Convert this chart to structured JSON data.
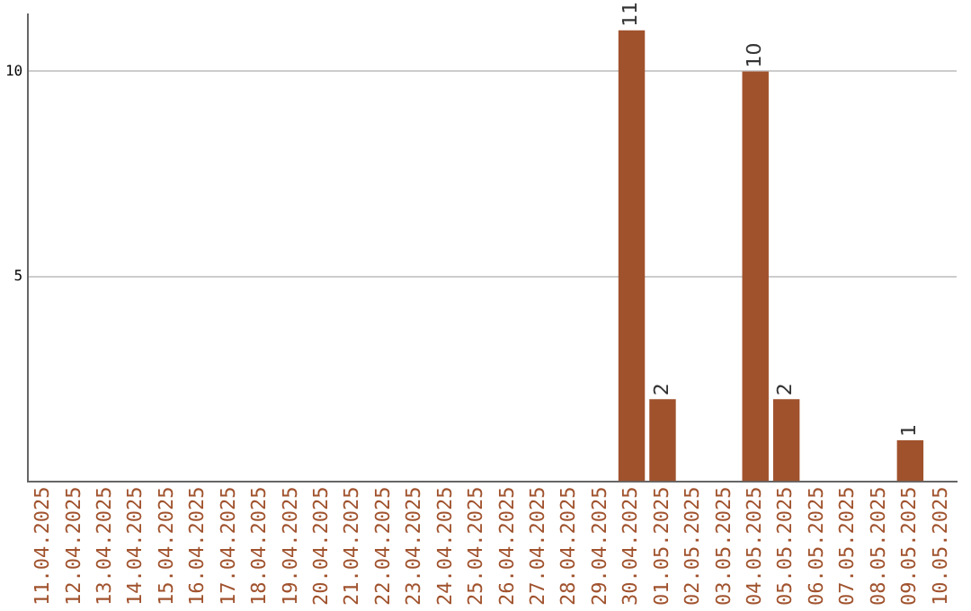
{
  "chart_data": {
    "type": "bar",
    "categories": [
      "11.04.2025",
      "12.04.2025",
      "13.04.2025",
      "14.04.2025",
      "15.04.2025",
      "16.04.2025",
      "17.04.2025",
      "18.04.2025",
      "19.04.2025",
      "20.04.2025",
      "21.04.2025",
      "22.04.2025",
      "23.04.2025",
      "24.04.2025",
      "25.04.2025",
      "26.04.2025",
      "27.04.2025",
      "28.04.2025",
      "29.04.2025",
      "30.04.2025",
      "01.05.2025",
      "02.05.2025",
      "03.05.2025",
      "04.05.2025",
      "05.05.2025",
      "06.05.2025",
      "07.05.2025",
      "08.05.2025",
      "09.05.2025",
      "10.05.2025"
    ],
    "values": [
      0,
      0,
      0,
      0,
      0,
      0,
      0,
      0,
      0,
      0,
      0,
      0,
      0,
      0,
      0,
      0,
      0,
      0,
      0,
      11,
      2,
      0,
      0,
      10,
      2,
      0,
      0,
      0,
      1,
      0
    ],
    "value_labels": [
      null,
      null,
      null,
      null,
      null,
      null,
      null,
      null,
      null,
      null,
      null,
      null,
      null,
      null,
      null,
      null,
      null,
      null,
      null,
      "11",
      "2",
      null,
      null,
      "10",
      "2",
      null,
      null,
      null,
      "1",
      null
    ],
    "color": "#a0522d",
    "ylim": [
      0,
      11.4
    ],
    "yticks": [
      5,
      10
    ],
    "grid": "y",
    "legend": false
  }
}
